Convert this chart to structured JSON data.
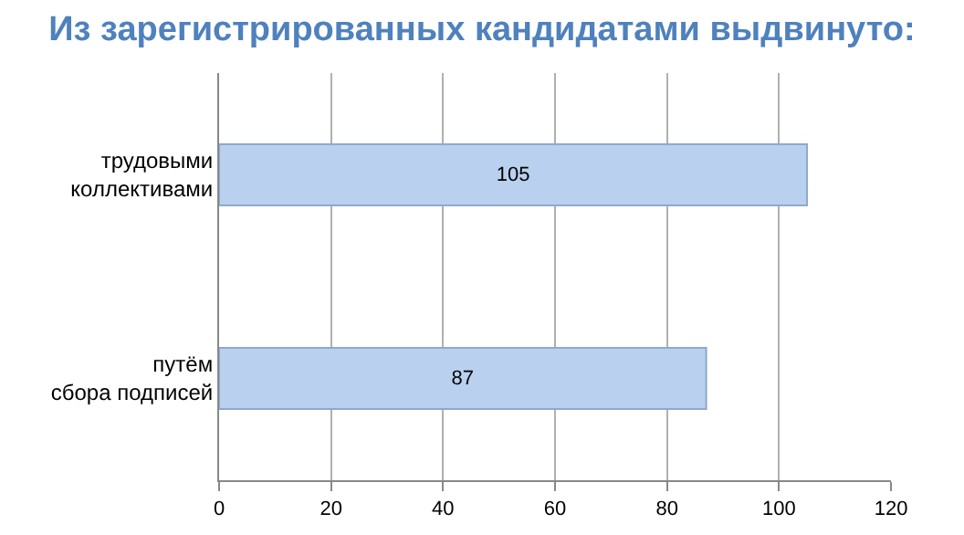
{
  "chart_data": {
    "type": "bar",
    "title": "Из зарегистрированных кандидатами выдвинуто:",
    "orientation": "horizontal",
    "categories": [
      "трудовыми\nколлективами",
      "путём\nсбора подписей"
    ],
    "values": [
      105,
      87
    ],
    "color": "#b9d0ee",
    "xlim": [
      0,
      120
    ],
    "xticks": [
      0,
      20,
      40,
      60,
      80,
      100,
      120
    ],
    "grid": "x",
    "data_labels": true,
    "legend": false
  }
}
